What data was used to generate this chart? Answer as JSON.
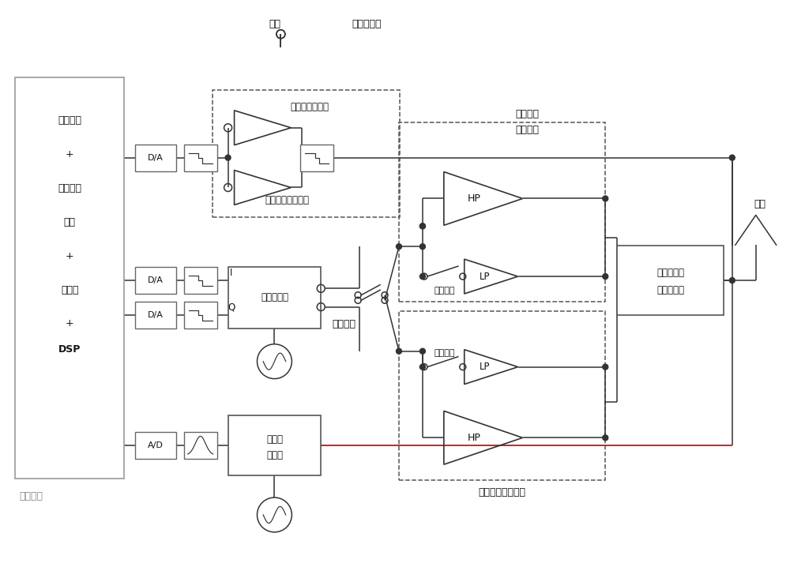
{
  "labels": {
    "digital_baseband": "数字基带",
    "dsp_text1": "包络生成",
    "dsp_text2": "+",
    "dsp_text3": "调制信号",
    "dsp_text4": "生成",
    "dsp_text5": "+",
    "dsp_text6": "预失真",
    "dsp_text7": "+",
    "dsp_text8": "DSP",
    "power_supply": "电源",
    "power_modulator": "电源调制器",
    "linear_env_amp": "线性包络放大器",
    "switch_env_amp": "开关式包络放大器",
    "quadrature_mod": "正交调制器",
    "freq_switch": "频率开关",
    "low_freq_module_line1": "低频段放",
    "low_freq_module_line2": "大器模块",
    "high_freq_module": "高频段放大器模块",
    "reconfig_match_line1": "可重构式输",
    "reconfig_match_line2": "出匹配电路",
    "antenna": "天线",
    "power_switch": "功率开关",
    "down_conv_line1": "下变频",
    "down_conv_line2": "调制器",
    "I_label": "I",
    "Q_label": "Q"
  },
  "colors": {
    "line": "#333333",
    "dashed_box": "#555555",
    "gray_box": "#777777",
    "red_line": "#cc2222",
    "dot": "#333333",
    "bg": "#ffffff"
  }
}
